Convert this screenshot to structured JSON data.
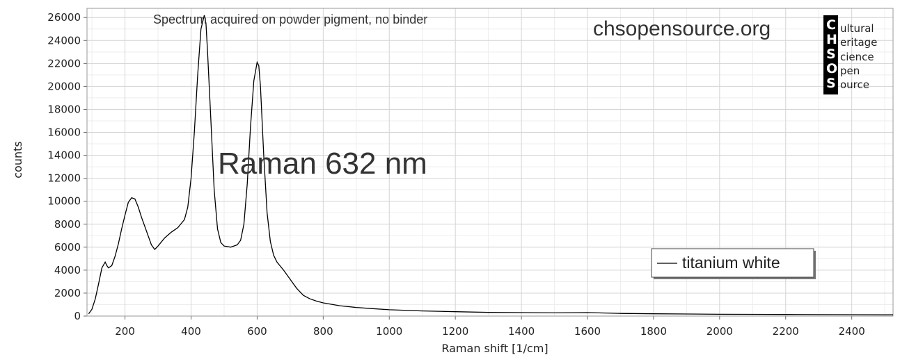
{
  "chart_data": {
    "type": "line",
    "annotations": {
      "note": "Spectrum acquired on powder pigment, no binder",
      "big_label": "Raman 632 nm",
      "site": "chsopensource.org"
    },
    "logo": {
      "letters": [
        "C",
        "H",
        "S",
        "O",
        "S"
      ],
      "words": [
        "ultural",
        "eritage",
        "cience",
        "pen",
        "ource"
      ]
    },
    "xlabel": "Raman shift [1/cm]",
    "ylabel": "counts",
    "xlim": [
      85,
      2525
    ],
    "ylim": [
      0,
      26800
    ],
    "x_ticks": [
      200,
      400,
      600,
      800,
      1000,
      1200,
      1400,
      1600,
      1800,
      2000,
      2200,
      2400
    ],
    "y_ticks": [
      0,
      2000,
      4000,
      6000,
      8000,
      10000,
      12000,
      14000,
      16000,
      18000,
      20000,
      22000,
      24000,
      26000
    ],
    "grid": true,
    "legend_position": "right",
    "series": [
      {
        "name": "titanium white",
        "color": "#000000",
        "x": [
          90,
          100,
          110,
          120,
          130,
          140,
          145,
          150,
          160,
          170,
          180,
          190,
          200,
          210,
          220,
          230,
          240,
          250,
          260,
          270,
          280,
          290,
          300,
          320,
          340,
          360,
          380,
          390,
          400,
          410,
          420,
          430,
          440,
          445,
          450,
          460,
          470,
          480,
          490,
          500,
          520,
          540,
          550,
          560,
          570,
          580,
          590,
          600,
          605,
          610,
          620,
          630,
          640,
          650,
          660,
          680,
          700,
          720,
          740,
          760,
          780,
          800,
          850,
          900,
          950,
          1000,
          1100,
          1200,
          1300,
          1400,
          1500,
          1600,
          1700,
          1800,
          1900,
          2000,
          2100,
          2200,
          2300,
          2400,
          2500,
          2525
        ],
        "y": [
          200,
          600,
          1500,
          2800,
          4200,
          4700,
          4400,
          4200,
          4400,
          5200,
          6300,
          7600,
          8800,
          9900,
          10300,
          10200,
          9500,
          8600,
          7800,
          7000,
          6200,
          5800,
          6100,
          6800,
          7300,
          7700,
          8400,
          9500,
          12000,
          16000,
          21000,
          25000,
          26200,
          25500,
          23000,
          17000,
          11000,
          7600,
          6400,
          6100,
          6000,
          6200,
          6600,
          8000,
          11500,
          16500,
          20500,
          22100,
          21800,
          20000,
          14000,
          9000,
          6500,
          5300,
          4700,
          4000,
          3200,
          2400,
          1800,
          1500,
          1300,
          1150,
          900,
          750,
          650,
          550,
          450,
          380,
          320,
          300,
          280,
          300,
          230,
          200,
          180,
          160,
          150,
          140,
          130,
          120,
          110,
          110
        ]
      }
    ]
  }
}
